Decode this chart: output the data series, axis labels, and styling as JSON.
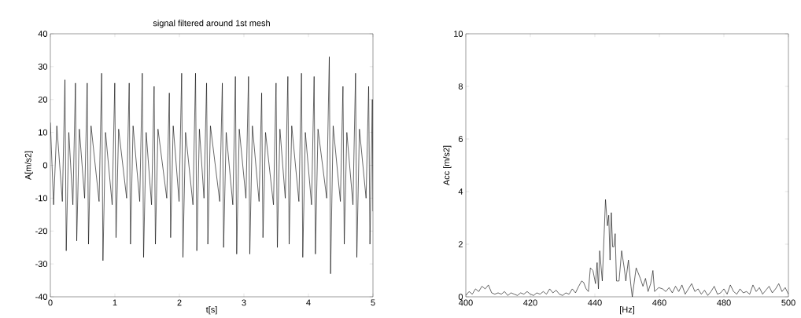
{
  "chart_data": [
    {
      "type": "line",
      "title": "signal filtered around 1st mesh",
      "xlabel": "t[s]",
      "ylabel": "A[m/s2]",
      "color": "#000000",
      "xlim": [
        0,
        5
      ],
      "ylim": [
        -40,
        40
      ],
      "xticks": [
        0,
        1,
        2,
        3,
        4,
        5
      ],
      "yticks": [
        -40,
        -30,
        -20,
        -10,
        0,
        10,
        20,
        30,
        40
      ],
      "x": [
        0,
        0.05,
        0.1,
        0.186,
        0.226,
        0.246,
        0.286,
        0.349,
        0.389,
        0.409,
        0.449,
        0.531,
        0.571,
        0.591,
        0.631,
        0.755,
        0.795,
        0.815,
        0.855,
        0.958,
        0.998,
        1.018,
        1.058,
        1.182,
        1.222,
        1.242,
        1.282,
        1.385,
        1.425,
        1.445,
        1.485,
        1.568,
        1.608,
        1.628,
        1.668,
        1.804,
        1.844,
        1.864,
        1.904,
        1.995,
        2.035,
        2.055,
        2.095,
        2.21,
        2.25,
        2.27,
        2.31,
        2.381,
        2.421,
        2.441,
        2.481,
        2.625,
        2.665,
        2.685,
        2.725,
        2.828,
        2.868,
        2.888,
        2.928,
        3.031,
        3.071,
        3.091,
        3.131,
        3.235,
        3.275,
        3.295,
        3.335,
        3.458,
        3.498,
        3.518,
        3.558,
        3.641,
        3.681,
        3.701,
        3.741,
        3.852,
        3.892,
        3.912,
        3.952,
        4.048,
        4.088,
        4.108,
        4.148,
        4.283,
        4.323,
        4.343,
        4.383,
        4.495,
        4.535,
        4.555,
        4.595,
        4.69,
        4.73,
        4.75,
        4.79,
        4.893,
        4.933,
        4.953,
        4.99,
        5
      ],
      "values": [
        13,
        -12,
        12,
        -11,
        26,
        -26,
        10,
        -12,
        25,
        -23,
        11,
        -10,
        25,
        -24,
        12,
        -11,
        28,
        -29,
        10,
        -12,
        25,
        -22,
        11,
        -10,
        25,
        -24,
        12,
        -11,
        28,
        -28,
        10,
        -12,
        24,
        -24,
        11,
        -10,
        22,
        -22,
        12,
        -11,
        28,
        -28,
        10,
        -12,
        28,
        -26,
        11,
        -10,
        25,
        -24,
        12,
        -11,
        25,
        -25,
        10,
        -12,
        27,
        -27,
        11,
        -10,
        27,
        -27,
        12,
        -11,
        22,
        -22,
        10,
        -12,
        25,
        -25,
        11,
        -10,
        27,
        -24,
        12,
        -11,
        28,
        -28,
        10,
        -12,
        27,
        -27,
        11,
        -10,
        33,
        -33,
        12,
        -11,
        24,
        -24,
        10,
        -12,
        28,
        -28,
        11,
        -10,
        24,
        -24,
        20,
        -14
      ]
    },
    {
      "type": "line",
      "xlabel": "[Hz]",
      "ylabel": "Acc [m/s2]",
      "color": "#000000",
      "xlim": [
        400,
        500
      ],
      "ylim": [
        0,
        10
      ],
      "xticks": [
        400,
        420,
        440,
        460,
        480,
        500
      ],
      "yticks": [
        0,
        2,
        4,
        6,
        8,
        10
      ],
      "x": [
        400,
        401,
        402,
        403,
        404,
        405,
        406,
        407,
        408,
        409,
        410,
        411,
        412,
        413,
        414,
        415,
        416,
        417,
        418,
        419,
        420,
        421,
        422,
        423,
        424,
        425,
        426,
        427,
        428,
        429,
        430,
        431,
        432,
        433,
        434,
        435,
        435.9,
        436.5,
        437.3,
        438,
        438.6,
        439.4,
        440.2,
        440.7,
        441.1,
        441.5,
        442.3,
        443.3,
        443.9,
        444.3,
        444.7,
        445.1,
        445.5,
        445.9,
        446.3,
        446.7,
        447.5,
        448.3,
        449.1,
        449.6,
        450.4,
        451.2,
        451.6,
        452.8,
        454.1,
        454.9,
        455.7,
        456.5,
        457.3,
        458,
        458.5,
        459.8,
        461,
        462,
        463,
        464,
        465,
        466,
        467,
        468,
        469,
        470,
        471,
        472,
        473,
        474,
        475,
        476,
        477,
        478,
        479,
        480,
        481,
        482,
        483,
        484,
        485,
        486,
        487,
        488,
        489,
        490,
        491,
        492,
        493,
        494,
        495,
        496,
        497,
        498,
        499,
        500
      ],
      "values": [
        0.05,
        0.2,
        0.1,
        0.3,
        0.2,
        0.4,
        0.3,
        0.45,
        0.15,
        0.1,
        0.15,
        0.1,
        0.2,
        0.05,
        0.15,
        0.1,
        0.05,
        0.15,
        0.1,
        0.2,
        0.1,
        0.05,
        0.15,
        0.1,
        0.2,
        0.1,
        0.3,
        0.15,
        0.25,
        0.1,
        0.05,
        0.15,
        0.1,
        0.3,
        0.15,
        0.4,
        0.6,
        0.55,
        0.3,
        0.2,
        1.1,
        1.0,
        0.5,
        1.3,
        0.3,
        1.75,
        0.6,
        3.7,
        2.7,
        3.1,
        1.4,
        3.2,
        1.9,
        1.9,
        2.4,
        0.6,
        0.6,
        1.75,
        1.1,
        0.6,
        1.4,
        0.4,
        0,
        1.1,
        0.7,
        0.4,
        0.7,
        0.2,
        0.5,
        1.0,
        0.2,
        0.35,
        0.3,
        0.2,
        0.35,
        0.15,
        0.4,
        0.2,
        0.45,
        0.1,
        0.3,
        0.5,
        0.2,
        0.3,
        0.1,
        0.25,
        0.05,
        0.2,
        0.4,
        0.1,
        0.15,
        0.3,
        0.1,
        0.45,
        0.2,
        0.1,
        0.3,
        0.15,
        0.2,
        0.1,
        0.45,
        0.2,
        0.35,
        0.1,
        0.25,
        0.4,
        0.15,
        0.3,
        0.5,
        0.2,
        0.35,
        0.1
      ]
    }
  ]
}
